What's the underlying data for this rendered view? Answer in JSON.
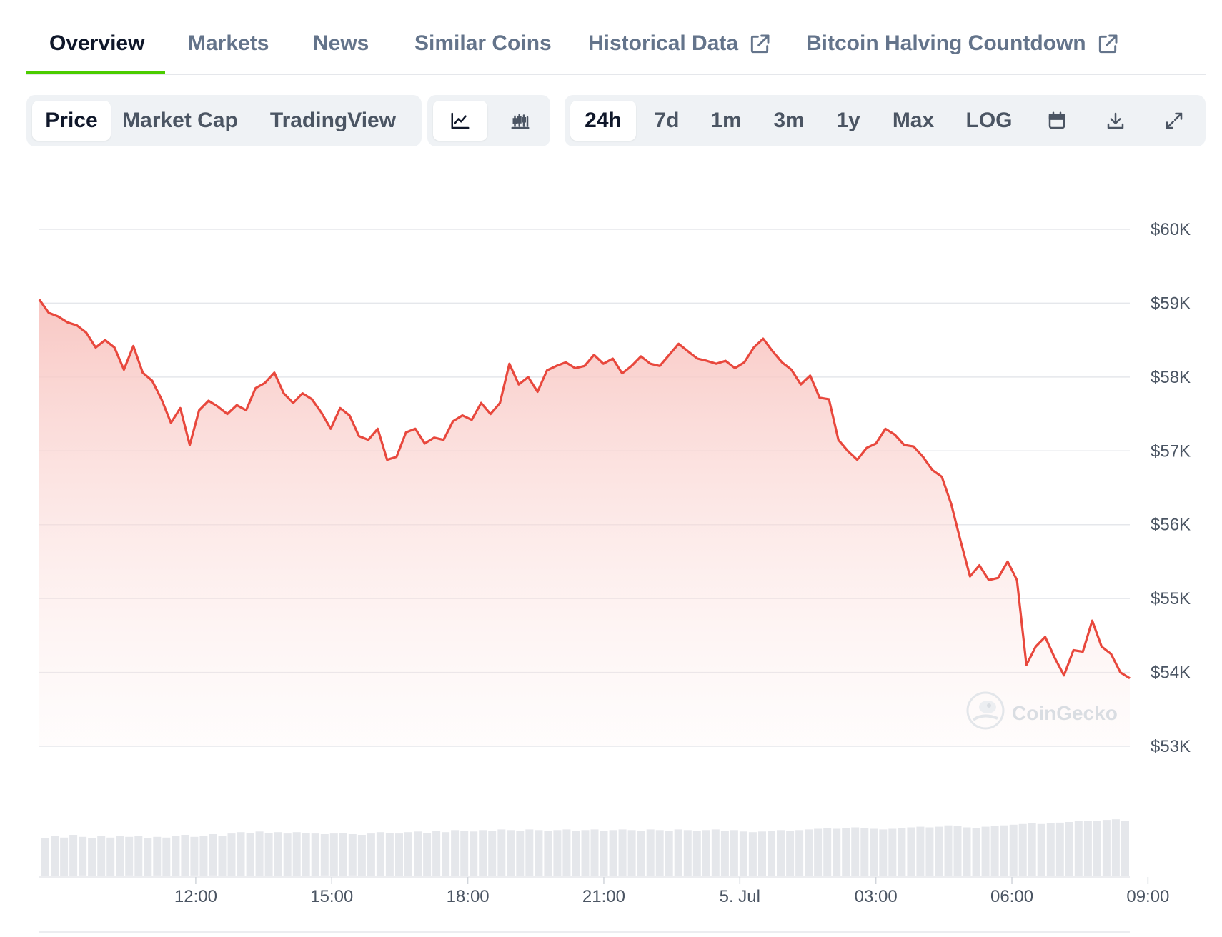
{
  "tabs": [
    {
      "label": "Overview",
      "active": true
    },
    {
      "label": "Markets"
    },
    {
      "label": "News"
    },
    {
      "label": "Similar Coins"
    },
    {
      "label": "Historical Data",
      "icon": "external-link-icon"
    },
    {
      "label": "Bitcoin Halving Countdown",
      "icon": "external-link-icon"
    }
  ],
  "toolbar": {
    "chart_types": [
      "Price",
      "Market Cap",
      "TradingView"
    ],
    "selected_chart_type": "Price",
    "view_icons": [
      "line-chart-icon",
      "candlestick-chart-icon"
    ],
    "ranges": [
      "24h",
      "7d",
      "1m",
      "3m",
      "1y",
      "Max",
      "LOG"
    ],
    "selected_range": "24h",
    "action_icons": [
      "calendar-icon",
      "download-icon",
      "fullscreen-icon"
    ]
  },
  "watermark": "CoinGecko",
  "colors": {
    "accent_tab": "#4bcc00",
    "line": "#e8483d",
    "area_top": "#f8c4c0",
    "volume": "#e5e7eb"
  },
  "chart_data": {
    "type": "area",
    "title": "",
    "xlabel": "",
    "ylabel": "",
    "ylim": [
      53000,
      60000
    ],
    "y_ticks": [
      "$60K",
      "$59K",
      "$58K",
      "$57K",
      "$56K",
      "$55K",
      "$54K",
      "$53K"
    ],
    "y_tick_values": [
      60000,
      59000,
      58000,
      57000,
      56000,
      55000,
      54000,
      53000
    ],
    "x_range_hours": [
      -3.45,
      20.6
    ],
    "x_ticks": [
      "12:00",
      "15:00",
      "18:00",
      "21:00",
      "5. Jul",
      "03:00",
      "06:00",
      "09:00"
    ],
    "x_tick_hours": [
      0,
      3,
      6,
      9,
      12,
      15,
      18,
      21
    ],
    "grid": true,
    "series": [
      {
        "values": [
          59050,
          58870,
          58820,
          58740,
          58700,
          58600,
          58400,
          58500,
          58400,
          58100,
          58420,
          58060,
          57950,
          57700,
          57380,
          57580,
          57080,
          57550,
          57680,
          57600,
          57500,
          57620,
          57550,
          57850,
          57920,
          58060,
          57780,
          57650,
          57780,
          57700,
          57520,
          57300,
          57580,
          57480,
          57200,
          57150,
          57300,
          56880,
          56920,
          57250,
          57300,
          57100,
          57180,
          57150,
          57400,
          57480,
          57420,
          57650,
          57500,
          57650,
          58180,
          57900,
          58000,
          57800,
          58090,
          58150,
          58200,
          58120,
          58150,
          58300,
          58180,
          58250,
          58050,
          58150,
          58280,
          58180,
          58150,
          58300,
          58450,
          58350,
          58250,
          58220,
          58180,
          58220,
          58120,
          58200,
          58400,
          58520,
          58350,
          58200,
          58100,
          57900,
          58020,
          57720,
          57700,
          57150,
          57000,
          56880,
          57040,
          57100,
          57300,
          57220,
          57080,
          57060,
          56920,
          56740,
          56650,
          56280,
          55780,
          55300,
          55450,
          55250,
          55280,
          55500,
          55250,
          54100,
          54350,
          54480,
          54200,
          53960,
          54300,
          54280,
          54700,
          54350,
          54250,
          54000,
          53920
        ]
      }
    ],
    "volume": [
      0.55,
      0.58,
      0.56,
      0.6,
      0.57,
      0.55,
      0.58,
      0.56,
      0.59,
      0.57,
      0.58,
      0.55,
      0.57,
      0.56,
      0.58,
      0.6,
      0.57,
      0.59,
      0.61,
      0.58,
      0.62,
      0.64,
      0.63,
      0.65,
      0.63,
      0.64,
      0.62,
      0.64,
      0.63,
      0.62,
      0.61,
      0.62,
      0.63,
      0.61,
      0.6,
      0.62,
      0.64,
      0.63,
      0.62,
      0.64,
      0.65,
      0.63,
      0.66,
      0.64,
      0.67,
      0.66,
      0.65,
      0.67,
      0.66,
      0.68,
      0.67,
      0.66,
      0.68,
      0.67,
      0.66,
      0.67,
      0.68,
      0.66,
      0.67,
      0.68,
      0.66,
      0.67,
      0.68,
      0.67,
      0.66,
      0.68,
      0.67,
      0.66,
      0.68,
      0.67,
      0.66,
      0.67,
      0.68,
      0.66,
      0.67,
      0.65,
      0.64,
      0.65,
      0.66,
      0.67,
      0.66,
      0.67,
      0.68,
      0.69,
      0.7,
      0.69,
      0.7,
      0.71,
      0.7,
      0.69,
      0.68,
      0.69,
      0.7,
      0.71,
      0.72,
      0.71,
      0.72,
      0.74,
      0.73,
      0.71,
      0.7,
      0.72,
      0.73,
      0.74,
      0.75,
      0.76,
      0.77,
      0.76,
      0.77,
      0.78,
      0.79,
      0.8,
      0.81,
      0.8,
      0.82,
      0.83,
      0.81
    ]
  }
}
